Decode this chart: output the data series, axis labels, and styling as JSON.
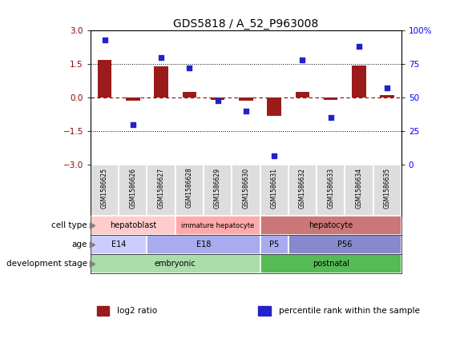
{
  "title": "GDS5818 / A_52_P963008",
  "samples": [
    "GSM1586625",
    "GSM1586626",
    "GSM1586627",
    "GSM1586628",
    "GSM1586629",
    "GSM1586630",
    "GSM1586631",
    "GSM1586632",
    "GSM1586633",
    "GSM1586634",
    "GSM1586635"
  ],
  "log2_ratio": [
    1.7,
    -0.15,
    1.4,
    0.25,
    -0.1,
    -0.15,
    -0.8,
    0.25,
    -0.1,
    1.45,
    0.1
  ],
  "percentile": [
    93,
    30,
    80,
    72,
    48,
    40,
    7,
    78,
    35,
    88,
    57
  ],
  "ylim_left": [
    -3,
    3
  ],
  "ylim_right": [
    0,
    100
  ],
  "yticks_left": [
    -3,
    -1.5,
    0,
    1.5,
    3
  ],
  "yticks_right": [
    0,
    25,
    50,
    75,
    100
  ],
  "bar_color": "#9B1B1B",
  "dot_color": "#2222CC",
  "bar_width": 0.5,
  "annotation_rows": [
    {
      "label": "development stage",
      "segments": [
        {
          "text": "embryonic",
          "start": 0,
          "end": 6,
          "color": "#AADDAA"
        },
        {
          "text": "postnatal",
          "start": 6,
          "end": 11,
          "color": "#55BB55"
        }
      ]
    },
    {
      "label": "age",
      "segments": [
        {
          "text": "E14",
          "start": 0,
          "end": 2,
          "color": "#CCCCFF"
        },
        {
          "text": "E18",
          "start": 2,
          "end": 6,
          "color": "#AAAAEE"
        },
        {
          "text": "P5",
          "start": 6,
          "end": 7,
          "color": "#AAAAEE"
        },
        {
          "text": "P56",
          "start": 7,
          "end": 11,
          "color": "#8888CC"
        }
      ]
    },
    {
      "label": "cell type",
      "segments": [
        {
          "text": "hepatoblast",
          "start": 0,
          "end": 3,
          "color": "#FFCCCC"
        },
        {
          "text": "immature hepatocyte",
          "start": 3,
          "end": 6,
          "color": "#FFAAAA"
        },
        {
          "text": "hepatocyte",
          "start": 6,
          "end": 11,
          "color": "#CC7777"
        }
      ]
    }
  ],
  "legend_items": [
    {
      "label": "log2 ratio",
      "color": "#9B1B1B"
    },
    {
      "label": "percentile rank within the sample",
      "color": "#2222CC"
    }
  ]
}
